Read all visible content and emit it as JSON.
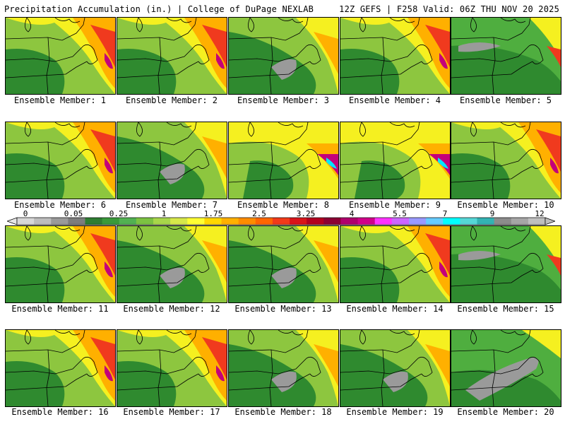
{
  "header": {
    "title_left": "Precipitation Accumulation (in.) | College of DuPage NEXLAB",
    "title_right": "12Z GEFS | F258 Valid: 06Z THU NOV 20 2025"
  },
  "members": [
    {
      "label": "Ensemble Member: 1",
      "variant": "wet-east"
    },
    {
      "label": "Ensemble Member: 2",
      "variant": "wet-northeast"
    },
    {
      "label": "Ensemble Member: 3",
      "variant": "dry-center"
    },
    {
      "label": "Ensemble Member: 4",
      "variant": "wet-northeast"
    },
    {
      "label": "Ensemble Member: 5",
      "variant": "dry-north"
    },
    {
      "label": "Ensemble Member: 6",
      "variant": "wet-east"
    },
    {
      "label": "Ensemble Member: 7",
      "variant": "dry-center"
    },
    {
      "label": "Ensemble Member: 8",
      "variant": "wet-coast"
    },
    {
      "label": "Ensemble Member: 9",
      "variant": "wet-coast"
    },
    {
      "label": "Ensemble Member: 10",
      "variant": "wet-all"
    },
    {
      "label": "Ensemble Member: 11",
      "variant": "wet-east"
    },
    {
      "label": "Ensemble Member: 12",
      "variant": "dry-center"
    },
    {
      "label": "Ensemble Member: 13",
      "variant": "dry-center"
    },
    {
      "label": "Ensemble Member: 14",
      "variant": "wet-east"
    },
    {
      "label": "Ensemble Member: 15",
      "variant": "dry-north"
    },
    {
      "label": "Ensemble Member: 16",
      "variant": "wet-all"
    },
    {
      "label": "Ensemble Member: 17",
      "variant": "wet-east"
    },
    {
      "label": "Ensemble Member: 18",
      "variant": "dry-center"
    },
    {
      "label": "Ensemble Member: 19",
      "variant": "dry-center"
    },
    {
      "label": "Ensemble Member: 20",
      "variant": "dry-south"
    }
  ],
  "colorbar": {
    "tick_labels": [
      "0",
      "0.05",
      "0.25",
      "1",
      "1.75",
      "2.5",
      "3.25",
      "4",
      "5.5",
      "7",
      "9",
      "12"
    ],
    "colors": [
      "#d8d8d8",
      "#bdbdbd",
      "#9a9a9a",
      "#7d7d7d",
      "#2e7d32",
      "#3a9a3a",
      "#52b152",
      "#7cc242",
      "#a8d64a",
      "#d7e84a",
      "#ffff33",
      "#ffd700",
      "#ffb000",
      "#ff8c00",
      "#ff6600",
      "#f23a1a",
      "#d9141a",
      "#b3001f",
      "#8c0033",
      "#b0006d",
      "#d1008a",
      "#ff33ff",
      "#cc66ff",
      "#9999ff",
      "#66ccff",
      "#00ffff",
      "#55d7d7",
      "#33b3b3",
      "#8c8c8c",
      "#a6a6a6",
      "#bfbfbf"
    ]
  },
  "colors": {
    "dark_green": "#2f8a2f",
    "mid_green": "#4fae3f",
    "light_green": "#8dc63f",
    "yellow": "#f5f020",
    "orange": "#ffb000",
    "red": "#f03a1e",
    "magenta": "#c4007a",
    "purple": "#b266ff",
    "cyan": "#00e5ff",
    "gray": "#9a9a9a"
  }
}
